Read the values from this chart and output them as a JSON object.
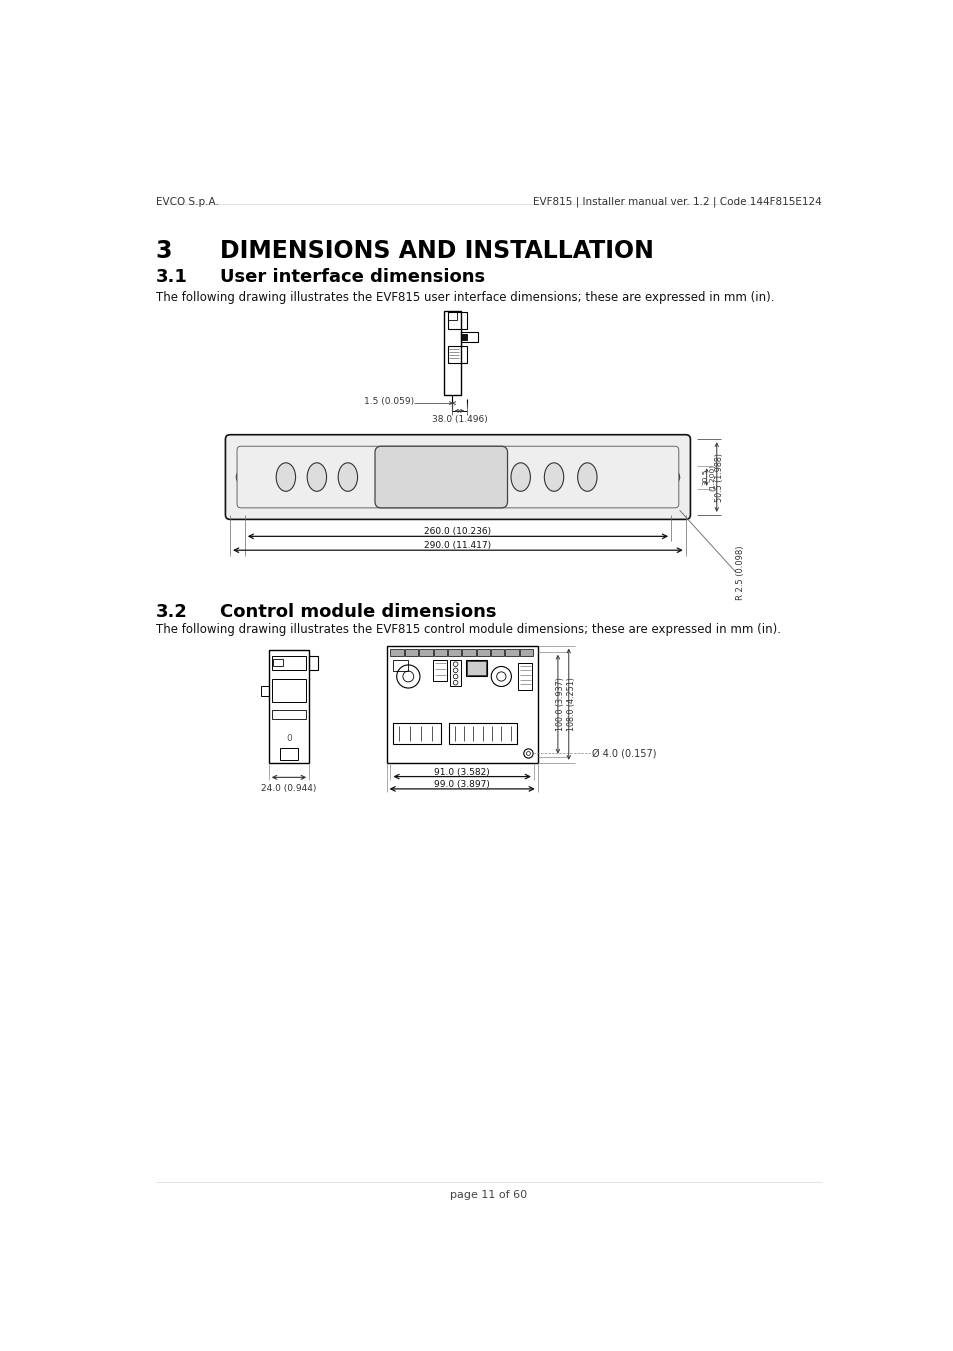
{
  "page_header_left": "EVCO S.p.A.",
  "page_header_right": "EVF815 | Installer manual ver. 1.2 | Code 144F815E124",
  "section3_title": "3",
  "section3_title2": "DIMENSIONS AND INSTALLATION",
  "section31_num": "3.1",
  "section31_title": "User interface dimensions",
  "section31_body": "The following drawing illustrates the EVF815 user interface dimensions; these are expressed in mm (in).",
  "section32_num": "3.2",
  "section32_title": "Control module dimensions",
  "section32_body": "The following drawing illustrates the EVF815 control module dimensions; these are expressed in mm (in).",
  "page_footer": "page 11 of 60",
  "bg_color": "#ffffff",
  "line_color": "#000000",
  "dim_color": "#555555",
  "text_color": "#000000",
  "gray_fill": "#e8e8e8",
  "dark_fill": "#222222"
}
